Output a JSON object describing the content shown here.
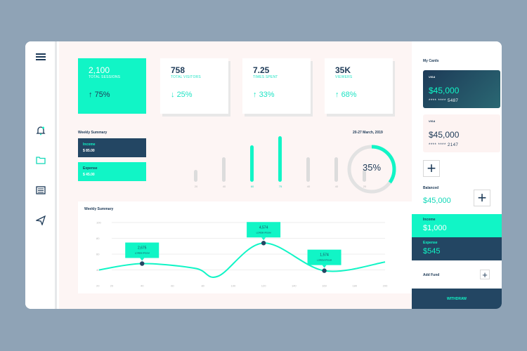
{
  "stats": [
    {
      "value": "2,100",
      "label": "TOTAL SESSIONS",
      "pct": "75%",
      "dir": "up"
    },
    {
      "value": "758",
      "label": "TOTAL VISITORS",
      "pct": "25%",
      "dir": "down"
    },
    {
      "value": "7.25",
      "label": "TIMES SPENT",
      "pct": "33%",
      "dir": "up"
    },
    {
      "value": "35K",
      "label": "VIEWERS",
      "pct": "68%",
      "dir": "up"
    }
  ],
  "weekly": {
    "title": "Weekly Summary",
    "date": "20-27 March, 2019",
    "income_label": "Income",
    "income_value": "$ 85.00",
    "expense_label": "Expense",
    "expense_value": "$ 45.00",
    "bar_labels": [
      "20",
      "40",
      "60",
      "75",
      "40",
      "40",
      "20"
    ],
    "bar_values": [
      20,
      40,
      60,
      75,
      40,
      40,
      20
    ],
    "bar_active": [
      false,
      false,
      true,
      true,
      false,
      false,
      false
    ],
    "donut_value": 35,
    "donut_label": "35%"
  },
  "chart_data": {
    "type": "line",
    "title": "Weekly Summary",
    "x": [
      20,
      40,
      60,
      80,
      100,
      120,
      140,
      160,
      180,
      200
    ],
    "y_ticks": [
      20,
      40,
      60,
      80,
      100
    ],
    "x_ticks": [
      "20",
      "40",
      "60",
      "80",
      "100",
      "120",
      "140",
      "160",
      "180",
      "200"
    ],
    "y_tick_labels": [
      "20",
      "40",
      "60",
      "80",
      "100"
    ],
    "ylim": [
      20,
      100
    ],
    "series": [
      {
        "values": [
          40,
          48,
          42,
          32,
          50,
          74,
          54,
          39,
          42,
          50
        ]
      }
    ],
    "annotations": [
      {
        "x": 40,
        "y": 48,
        "value": "2,675",
        "text": "LOREM IPSUM"
      },
      {
        "x": 120,
        "y": 74,
        "value": "4,574",
        "text": "LOREM IPSUM"
      },
      {
        "x": 160,
        "y": 39,
        "value": "1,574",
        "text": "LOREM IPSUM"
      }
    ]
  },
  "right": {
    "title": "My Cards",
    "cards": [
      {
        "brand": "VISA",
        "amount": "$45,000",
        "number": "**** **** 5487"
      },
      {
        "brand": "VISA",
        "amount": "$45,000",
        "number": "**** **** 2147"
      }
    ],
    "balanced_label": "Balanced",
    "balanced_value": "$45,000",
    "income_label": "Income",
    "income_value": "$1,000",
    "expense_label": "Expense",
    "expense_value": "$545",
    "add_fund_label": "Add Fund",
    "withdraw_label": "WITHDRAW",
    "plus": "+"
  },
  "colors": {
    "accent": "#11f5c6",
    "navy": "#234663",
    "bg": "#8fa3b6"
  }
}
